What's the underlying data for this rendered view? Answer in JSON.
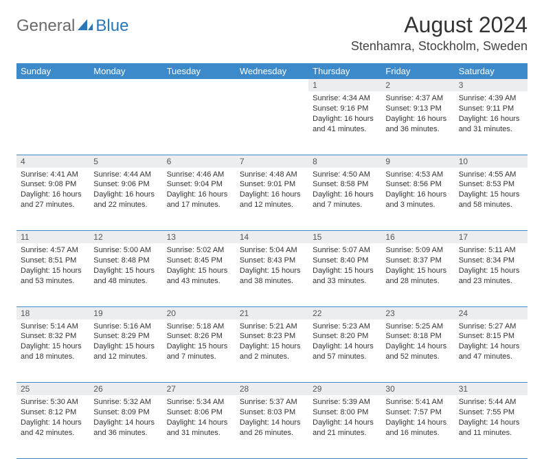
{
  "logo": {
    "text1": "General",
    "text2": "Blue"
  },
  "title": "August 2024",
  "location": "Stenhamra, Stockholm, Sweden",
  "headers": [
    "Sunday",
    "Monday",
    "Tuesday",
    "Wednesday",
    "Thursday",
    "Friday",
    "Saturday"
  ],
  "colors": {
    "header_bg": "#3c8ac9",
    "header_text": "#ffffff",
    "daynum_bg": "#ecedef",
    "border": "#3c8ac9",
    "body_text": "#333333",
    "logo_gray": "#6b6b6b",
    "logo_blue": "#2976b8"
  },
  "weeks": [
    [
      null,
      null,
      null,
      null,
      {
        "n": "1",
        "sr": "4:34 AM",
        "ss": "9:16 PM",
        "dl": "16 hours and 41 minutes."
      },
      {
        "n": "2",
        "sr": "4:37 AM",
        "ss": "9:13 PM",
        "dl": "16 hours and 36 minutes."
      },
      {
        "n": "3",
        "sr": "4:39 AM",
        "ss": "9:11 PM",
        "dl": "16 hours and 31 minutes."
      }
    ],
    [
      {
        "n": "4",
        "sr": "4:41 AM",
        "ss": "9:08 PM",
        "dl": "16 hours and 27 minutes."
      },
      {
        "n": "5",
        "sr": "4:44 AM",
        "ss": "9:06 PM",
        "dl": "16 hours and 22 minutes."
      },
      {
        "n": "6",
        "sr": "4:46 AM",
        "ss": "9:04 PM",
        "dl": "16 hours and 17 minutes."
      },
      {
        "n": "7",
        "sr": "4:48 AM",
        "ss": "9:01 PM",
        "dl": "16 hours and 12 minutes."
      },
      {
        "n": "8",
        "sr": "4:50 AM",
        "ss": "8:58 PM",
        "dl": "16 hours and 7 minutes."
      },
      {
        "n": "9",
        "sr": "4:53 AM",
        "ss": "8:56 PM",
        "dl": "16 hours and 3 minutes."
      },
      {
        "n": "10",
        "sr": "4:55 AM",
        "ss": "8:53 PM",
        "dl": "15 hours and 58 minutes."
      }
    ],
    [
      {
        "n": "11",
        "sr": "4:57 AM",
        "ss": "8:51 PM",
        "dl": "15 hours and 53 minutes."
      },
      {
        "n": "12",
        "sr": "5:00 AM",
        "ss": "8:48 PM",
        "dl": "15 hours and 48 minutes."
      },
      {
        "n": "13",
        "sr": "5:02 AM",
        "ss": "8:45 PM",
        "dl": "15 hours and 43 minutes."
      },
      {
        "n": "14",
        "sr": "5:04 AM",
        "ss": "8:43 PM",
        "dl": "15 hours and 38 minutes."
      },
      {
        "n": "15",
        "sr": "5:07 AM",
        "ss": "8:40 PM",
        "dl": "15 hours and 33 minutes."
      },
      {
        "n": "16",
        "sr": "5:09 AM",
        "ss": "8:37 PM",
        "dl": "15 hours and 28 minutes."
      },
      {
        "n": "17",
        "sr": "5:11 AM",
        "ss": "8:34 PM",
        "dl": "15 hours and 23 minutes."
      }
    ],
    [
      {
        "n": "18",
        "sr": "5:14 AM",
        "ss": "8:32 PM",
        "dl": "15 hours and 18 minutes."
      },
      {
        "n": "19",
        "sr": "5:16 AM",
        "ss": "8:29 PM",
        "dl": "15 hours and 12 minutes."
      },
      {
        "n": "20",
        "sr": "5:18 AM",
        "ss": "8:26 PM",
        "dl": "15 hours and 7 minutes."
      },
      {
        "n": "21",
        "sr": "5:21 AM",
        "ss": "8:23 PM",
        "dl": "15 hours and 2 minutes."
      },
      {
        "n": "22",
        "sr": "5:23 AM",
        "ss": "8:20 PM",
        "dl": "14 hours and 57 minutes."
      },
      {
        "n": "23",
        "sr": "5:25 AM",
        "ss": "8:18 PM",
        "dl": "14 hours and 52 minutes."
      },
      {
        "n": "24",
        "sr": "5:27 AM",
        "ss": "8:15 PM",
        "dl": "14 hours and 47 minutes."
      }
    ],
    [
      {
        "n": "25",
        "sr": "5:30 AM",
        "ss": "8:12 PM",
        "dl": "14 hours and 42 minutes."
      },
      {
        "n": "26",
        "sr": "5:32 AM",
        "ss": "8:09 PM",
        "dl": "14 hours and 36 minutes."
      },
      {
        "n": "27",
        "sr": "5:34 AM",
        "ss": "8:06 PM",
        "dl": "14 hours and 31 minutes."
      },
      {
        "n": "28",
        "sr": "5:37 AM",
        "ss": "8:03 PM",
        "dl": "14 hours and 26 minutes."
      },
      {
        "n": "29",
        "sr": "5:39 AM",
        "ss": "8:00 PM",
        "dl": "14 hours and 21 minutes."
      },
      {
        "n": "30",
        "sr": "5:41 AM",
        "ss": "7:57 PM",
        "dl": "14 hours and 16 minutes."
      },
      {
        "n": "31",
        "sr": "5:44 AM",
        "ss": "7:55 PM",
        "dl": "14 hours and 11 minutes."
      }
    ]
  ],
  "labels": {
    "sunrise": "Sunrise: ",
    "sunset": "Sunset: ",
    "daylight": "Daylight: "
  }
}
